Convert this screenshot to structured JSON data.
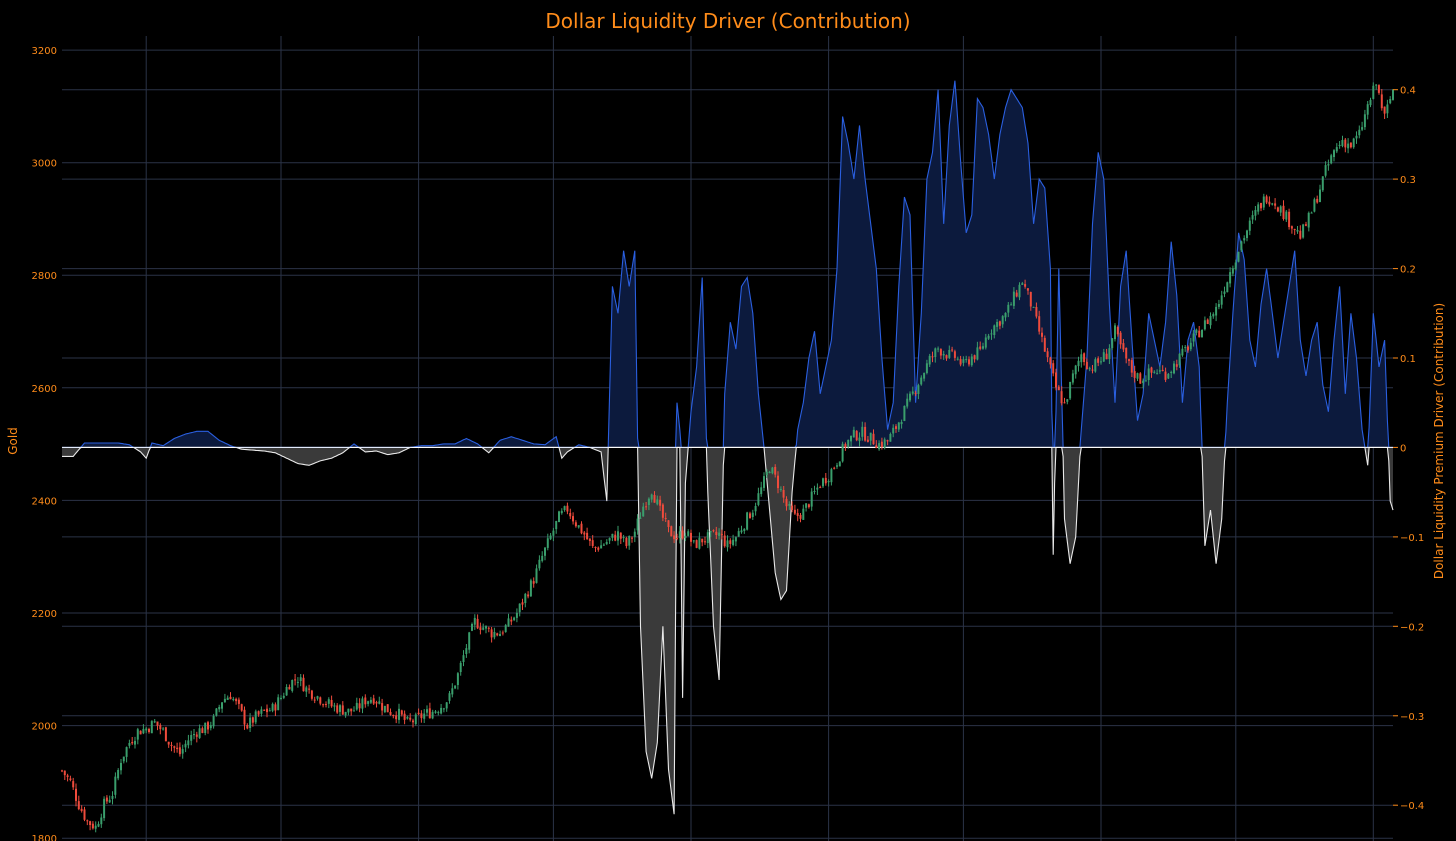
{
  "theme": {
    "background": "#000000",
    "text": "#ff8c1a",
    "grid": "#2b3347",
    "up": "#3a9e6c",
    "down": "#ef4b3c",
    "positive_line": "#2a5fe0",
    "positive_fill": "#0c1a3d",
    "negative_line": "#e9e9e9",
    "negative_fill": "#3a3a3a"
  },
  "chart_data": {
    "type": "candlestick+area",
    "title": "Dollar Liquidity Driver (Contribution)",
    "y_left": {
      "label": "Gold",
      "range": [
        1795,
        3225
      ],
      "ticks": [
        1800,
        2000,
        2200,
        2400,
        2600,
        2800,
        3000,
        3200
      ],
      "tick_labels": [
        "1800",
        "2000",
        "2200",
        "2400",
        "2600",
        "2800",
        "3000",
        "3200"
      ]
    },
    "y_right": {
      "label": "Dollar Liquidity Premium Driver (Contribution)",
      "range": [
        -0.44,
        0.46
      ],
      "ticks": [
        -0.4,
        -0.3,
        -0.2,
        -0.1,
        0,
        0.1,
        0.2,
        0.3,
        0.4
      ],
      "tick_labels": [
        "−0.4",
        "−0.3",
        "−0.2",
        "−0.1",
        "0",
        "0.1",
        "0.2",
        "0.3",
        "0.4"
      ]
    },
    "x_range": [
      0,
      474
    ],
    "x_grid": [
      30,
      78,
      127,
      175,
      224,
      273,
      321,
      370,
      418,
      467
    ],
    "grid": true,
    "gold_close": [
      [
        0,
        1920
      ],
      [
        3,
        1900
      ],
      [
        6,
        1860
      ],
      [
        9,
        1830
      ],
      [
        12,
        1820
      ],
      [
        15,
        1860
      ],
      [
        18,
        1880
      ],
      [
        21,
        1940
      ],
      [
        24,
        1970
      ],
      [
        27,
        1990
      ],
      [
        30,
        1995
      ],
      [
        33,
        2005
      ],
      [
        36,
        1990
      ],
      [
        39,
        1965
      ],
      [
        42,
        1950
      ],
      [
        45,
        1975
      ],
      [
        48,
        1990
      ],
      [
        51,
        1995
      ],
      [
        54,
        2010
      ],
      [
        57,
        2045
      ],
      [
        60,
        2055
      ],
      [
        63,
        2030
      ],
      [
        66,
        2000
      ],
      [
        69,
        2015
      ],
      [
        72,
        2025
      ],
      [
        75,
        2030
      ],
      [
        78,
        2050
      ],
      [
        81,
        2075
      ],
      [
        84,
        2085
      ],
      [
        87,
        2065
      ],
      [
        90,
        2055
      ],
      [
        93,
        2045
      ],
      [
        96,
        2035
      ],
      [
        99,
        2030
      ],
      [
        102,
        2025
      ],
      [
        105,
        2030
      ],
      [
        108,
        2045
      ],
      [
        111,
        2050
      ],
      [
        114,
        2035
      ],
      [
        117,
        2025
      ],
      [
        120,
        2020
      ],
      [
        123,
        2005
      ],
      [
        126,
        2010
      ],
      [
        129,
        2020
      ],
      [
        132,
        2025
      ],
      [
        135,
        2035
      ],
      [
        138,
        2050
      ],
      [
        141,
        2090
      ],
      [
        144,
        2140
      ],
      [
        147,
        2185
      ],
      [
        150,
        2175
      ],
      [
        153,
        2165
      ],
      [
        156,
        2165
      ],
      [
        159,
        2180
      ],
      [
        162,
        2200
      ],
      [
        165,
        2230
      ],
      [
        168,
        2260
      ],
      [
        171,
        2300
      ],
      [
        174,
        2335
      ],
      [
        177,
        2370
      ],
      [
        180,
        2385
      ],
      [
        183,
        2360
      ],
      [
        186,
        2340
      ],
      [
        189,
        2315
      ],
      [
        192,
        2320
      ],
      [
        195,
        2330
      ],
      [
        198,
        2340
      ],
      [
        201,
        2320
      ],
      [
        204,
        2345
      ],
      [
        207,
        2390
      ],
      [
        210,
        2420
      ],
      [
        213,
        2380
      ],
      [
        216,
        2345
      ],
      [
        219,
        2335
      ],
      [
        222,
        2345
      ],
      [
        225,
        2320
      ],
      [
        228,
        2330
      ],
      [
        231,
        2335
      ],
      [
        234,
        2340
      ],
      [
        237,
        2320
      ],
      [
        240,
        2335
      ],
      [
        243,
        2360
      ],
      [
        246,
        2385
      ],
      [
        249,
        2420
      ],
      [
        252,
        2460
      ],
      [
        255,
        2430
      ],
      [
        258,
        2390
      ],
      [
        261,
        2370
      ],
      [
        264,
        2380
      ],
      [
        267,
        2405
      ],
      [
        270,
        2430
      ],
      [
        273,
        2445
      ],
      [
        276,
        2470
      ],
      [
        279,
        2500
      ],
      [
        282,
        2515
      ],
      [
        285,
        2520
      ],
      [
        288,
        2510
      ],
      [
        291,
        2500
      ],
      [
        294,
        2505
      ],
      [
        297,
        2530
      ],
      [
        300,
        2560
      ],
      [
        303,
        2590
      ],
      [
        306,
        2620
      ],
      [
        309,
        2650
      ],
      [
        312,
        2670
      ],
      [
        315,
        2660
      ],
      [
        318,
        2655
      ],
      [
        321,
        2640
      ],
      [
        324,
        2655
      ],
      [
        327,
        2665
      ],
      [
        330,
        2700
      ],
      [
        333,
        2715
      ],
      [
        336,
        2730
      ],
      [
        339,
        2760
      ],
      [
        342,
        2790
      ],
      [
        345,
        2750
      ],
      [
        348,
        2700
      ],
      [
        351,
        2650
      ],
      [
        354,
        2600
      ],
      [
        357,
        2570
      ],
      [
        360,
        2620
      ],
      [
        363,
        2660
      ],
      [
        366,
        2635
      ],
      [
        369,
        2645
      ],
      [
        372,
        2660
      ],
      [
        375,
        2700
      ],
      [
        378,
        2660
      ],
      [
        381,
        2630
      ],
      [
        384,
        2615
      ],
      [
        387,
        2625
      ],
      [
        390,
        2630
      ],
      [
        393,
        2625
      ],
      [
        396,
        2640
      ],
      [
        399,
        2660
      ],
      [
        402,
        2680
      ],
      [
        405,
        2700
      ],
      [
        408,
        2720
      ],
      [
        411,
        2740
      ],
      [
        414,
        2780
      ],
      [
        417,
        2820
      ],
      [
        420,
        2860
      ],
      [
        423,
        2890
      ],
      [
        426,
        2920
      ],
      [
        429,
        2940
      ],
      [
        432,
        2930
      ],
      [
        435,
        2910
      ],
      [
        438,
        2890
      ],
      [
        441,
        2870
      ],
      [
        444,
        2900
      ],
      [
        447,
        2940
      ],
      [
        450,
        2985
      ],
      [
        453,
        3020
      ],
      [
        456,
        3040
      ],
      [
        459,
        3030
      ],
      [
        462,
        3050
      ],
      [
        465,
        3100
      ],
      [
        468,
        3140
      ],
      [
        471,
        3080
      ],
      [
        474,
        3130
      ]
    ],
    "driver": [
      [
        0,
        -0.01
      ],
      [
        4,
        -0.01
      ],
      [
        8,
        0.005
      ],
      [
        12,
        0.005
      ],
      [
        16,
        0.005
      ],
      [
        20,
        0.005
      ],
      [
        24,
        0.003
      ],
      [
        28,
        -0.005
      ],
      [
        30,
        -0.012
      ],
      [
        32,
        0.005
      ],
      [
        36,
        0.002
      ],
      [
        40,
        0.01
      ],
      [
        44,
        0.015
      ],
      [
        48,
        0.018
      ],
      [
        52,
        0.018
      ],
      [
        56,
        0.008
      ],
      [
        60,
        0.002
      ],
      [
        64,
        -0.002
      ],
      [
        68,
        -0.003
      ],
      [
        72,
        -0.004
      ],
      [
        76,
        -0.006
      ],
      [
        80,
        -0.012
      ],
      [
        84,
        -0.018
      ],
      [
        88,
        -0.02
      ],
      [
        92,
        -0.015
      ],
      [
        96,
        -0.012
      ],
      [
        100,
        -0.006
      ],
      [
        104,
        0.004
      ],
      [
        108,
        -0.005
      ],
      [
        112,
        -0.004
      ],
      [
        116,
        -0.008
      ],
      [
        120,
        -0.006
      ],
      [
        124,
        0.0
      ],
      [
        128,
        0.002
      ],
      [
        132,
        0.002
      ],
      [
        136,
        0.004
      ],
      [
        140,
        0.004
      ],
      [
        144,
        0.01
      ],
      [
        148,
        0.004
      ],
      [
        152,
        -0.006
      ],
      [
        156,
        0.008
      ],
      [
        160,
        0.012
      ],
      [
        164,
        0.008
      ],
      [
        168,
        0.004
      ],
      [
        172,
        0.003
      ],
      [
        176,
        0.012
      ],
      [
        178,
        -0.012
      ],
      [
        180,
        -0.005
      ],
      [
        184,
        0.003
      ],
      [
        188,
        0.0
      ],
      [
        192,
        -0.005
      ],
      [
        194,
        -0.06
      ],
      [
        196,
        0.18
      ],
      [
        198,
        0.15
      ],
      [
        200,
        0.22
      ],
      [
        202,
        0.18
      ],
      [
        204,
        0.22
      ],
      [
        206,
        -0.2
      ],
      [
        208,
        -0.34
      ],
      [
        210,
        -0.37
      ],
      [
        212,
        -0.33
      ],
      [
        214,
        -0.2
      ],
      [
        216,
        -0.36
      ],
      [
        218,
        -0.41
      ],
      [
        219,
        0.05
      ],
      [
        220,
        0.02
      ],
      [
        221,
        -0.28
      ],
      [
        222,
        -0.04
      ],
      [
        224,
        0.04
      ],
      [
        226,
        0.09
      ],
      [
        228,
        0.19
      ],
      [
        230,
        -0.05
      ],
      [
        232,
        -0.2
      ],
      [
        234,
        -0.26
      ],
      [
        236,
        0.06
      ],
      [
        238,
        0.14
      ],
      [
        240,
        0.11
      ],
      [
        242,
        0.18
      ],
      [
        244,
        0.19
      ],
      [
        246,
        0.15
      ],
      [
        248,
        0.06
      ],
      [
        250,
        0.0
      ],
      [
        252,
        -0.07
      ],
      [
        254,
        -0.14
      ],
      [
        256,
        -0.17
      ],
      [
        258,
        -0.16
      ],
      [
        260,
        -0.05
      ],
      [
        262,
        0.02
      ],
      [
        264,
        0.05
      ],
      [
        266,
        0.1
      ],
      [
        268,
        0.13
      ],
      [
        270,
        0.06
      ],
      [
        272,
        0.09
      ],
      [
        274,
        0.12
      ],
      [
        276,
        0.2
      ],
      [
        278,
        0.37
      ],
      [
        280,
        0.34
      ],
      [
        282,
        0.3
      ],
      [
        284,
        0.36
      ],
      [
        286,
        0.3
      ],
      [
        288,
        0.25
      ],
      [
        290,
        0.2
      ],
      [
        292,
        0.1
      ],
      [
        294,
        0.02
      ],
      [
        296,
        0.05
      ],
      [
        298,
        0.18
      ],
      [
        300,
        0.28
      ],
      [
        302,
        0.26
      ],
      [
        304,
        0.05
      ],
      [
        306,
        0.15
      ],
      [
        308,
        0.3
      ],
      [
        310,
        0.33
      ],
      [
        312,
        0.4
      ],
      [
        314,
        0.25
      ],
      [
        316,
        0.36
      ],
      [
        318,
        0.41
      ],
      [
        320,
        0.32
      ],
      [
        322,
        0.24
      ],
      [
        324,
        0.26
      ],
      [
        326,
        0.39
      ],
      [
        328,
        0.38
      ],
      [
        330,
        0.35
      ],
      [
        332,
        0.3
      ],
      [
        334,
        0.35
      ],
      [
        336,
        0.38
      ],
      [
        338,
        0.4
      ],
      [
        340,
        0.39
      ],
      [
        342,
        0.38
      ],
      [
        344,
        0.34
      ],
      [
        346,
        0.25
      ],
      [
        348,
        0.3
      ],
      [
        350,
        0.29
      ],
      [
        352,
        0.2
      ],
      [
        353,
        -0.12
      ],
      [
        355,
        0.2
      ],
      [
        357,
        -0.08
      ],
      [
        359,
        -0.13
      ],
      [
        361,
        -0.1
      ],
      [
        363,
        0.02
      ],
      [
        365,
        0.1
      ],
      [
        367,
        0.25
      ],
      [
        369,
        0.33
      ],
      [
        371,
        0.3
      ],
      [
        373,
        0.16
      ],
      [
        375,
        0.05
      ],
      [
        377,
        0.18
      ],
      [
        379,
        0.22
      ],
      [
        381,
        0.12
      ],
      [
        383,
        0.03
      ],
      [
        385,
        0.06
      ],
      [
        387,
        0.15
      ],
      [
        389,
        0.12
      ],
      [
        391,
        0.09
      ],
      [
        393,
        0.14
      ],
      [
        395,
        0.23
      ],
      [
        397,
        0.17
      ],
      [
        399,
        0.05
      ],
      [
        401,
        0.12
      ],
      [
        403,
        0.14
      ],
      [
        405,
        0.09
      ],
      [
        407,
        -0.11
      ],
      [
        409,
        -0.07
      ],
      [
        411,
        -0.13
      ],
      [
        413,
        -0.08
      ],
      [
        415,
        0.05
      ],
      [
        417,
        0.15
      ],
      [
        419,
        0.24
      ],
      [
        421,
        0.21
      ],
      [
        423,
        0.12
      ],
      [
        425,
        0.09
      ],
      [
        427,
        0.16
      ],
      [
        429,
        0.2
      ],
      [
        431,
        0.15
      ],
      [
        433,
        0.1
      ],
      [
        435,
        0.14
      ],
      [
        437,
        0.18
      ],
      [
        439,
        0.22
      ],
      [
        441,
        0.12
      ],
      [
        443,
        0.08
      ],
      [
        445,
        0.12
      ],
      [
        447,
        0.14
      ],
      [
        449,
        0.07
      ],
      [
        451,
        0.04
      ],
      [
        453,
        0.12
      ],
      [
        455,
        0.18
      ],
      [
        457,
        0.06
      ],
      [
        459,
        0.15
      ],
      [
        461,
        0.1
      ],
      [
        463,
        0.02
      ],
      [
        465,
        -0.02
      ],
      [
        467,
        0.15
      ],
      [
        469,
        0.09
      ],
      [
        471,
        0.12
      ],
      [
        473,
        -0.06
      ],
      [
        474,
        -0.07
      ]
    ]
  }
}
